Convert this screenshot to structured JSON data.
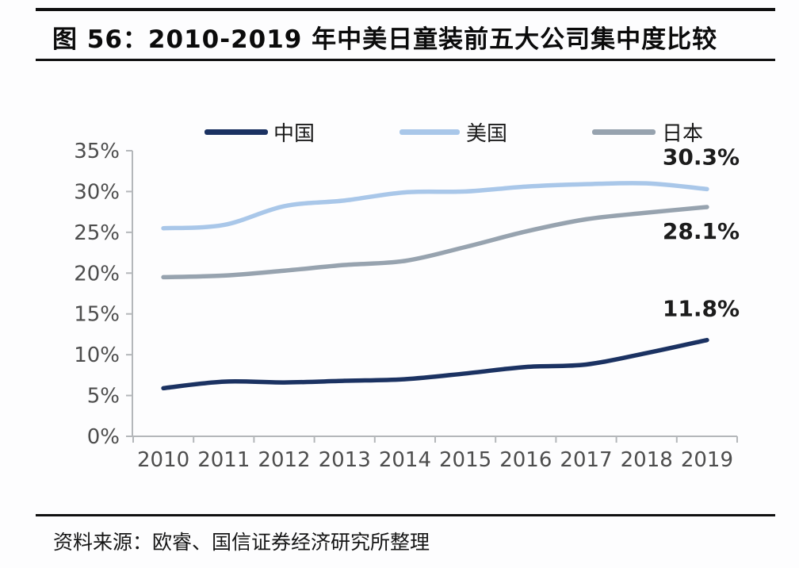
{
  "figure": {
    "title": "图 56：2010-2019 年中美日童装前五大公司集中度比较",
    "source": "资料来源：欧睿、国信证券经济研究所整理"
  },
  "chart_data": {
    "type": "line",
    "title": "2010-2019 年中美日童装前五大公司集中度比较",
    "x": [
      2010,
      2011,
      2012,
      2013,
      2014,
      2015,
      2016,
      2017,
      2018,
      2019
    ],
    "x_tick_labels": [
      "2010",
      "2011",
      "2012",
      "2013",
      "2014",
      "2015",
      "2016",
      "2017",
      "2018",
      "2019"
    ],
    "series": [
      {
        "name": "中国",
        "color": "#1b3262",
        "values": [
          5.9,
          6.7,
          6.6,
          6.8,
          7.0,
          7.7,
          8.5,
          8.8,
          10.2,
          11.8
        ],
        "end_label": "11.8%"
      },
      {
        "name": "美国",
        "color": "#a9c7e9",
        "values": [
          25.5,
          25.9,
          28.2,
          28.9,
          29.9,
          30.0,
          30.6,
          30.9,
          31.0,
          30.3
        ],
        "end_label": "30.3%"
      },
      {
        "name": "日本",
        "color": "#97a3af",
        "values": [
          19.5,
          19.7,
          20.3,
          21.0,
          21.5,
          23.2,
          25.1,
          26.6,
          27.4,
          28.1
        ],
        "end_label": "28.1%"
      }
    ],
    "ylim": [
      0,
      35
    ],
    "y_tick_step": 5,
    "y_tick_labels": [
      "0%",
      "5%",
      "10%",
      "15%",
      "20%",
      "25%",
      "30%",
      "35%"
    ],
    "ylabel": "",
    "xlabel": "",
    "grid": false,
    "legend_position": "top",
    "colors": {
      "axis": "#b4b7ba",
      "tick_label": "#4d4d4d",
      "data_label": "#1c1c1c",
      "legend_label": "#1a1a1a"
    }
  }
}
